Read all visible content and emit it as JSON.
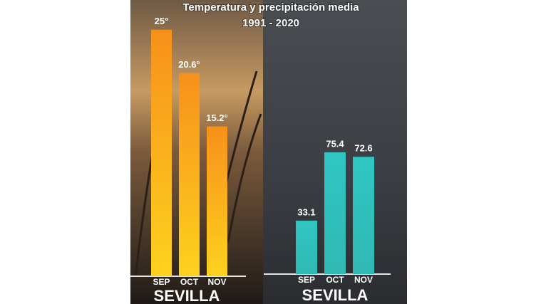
{
  "title": "Temperatura y precipitación media",
  "subtitle": "1991 - 2020",
  "chart_data": [
    {
      "type": "bar",
      "categories": [
        "SEP",
        "OCT",
        "NOV"
      ],
      "values": [
        25,
        20.6,
        15.2
      ],
      "value_labels": [
        "25°",
        "20.6°",
        "15.2°"
      ],
      "color": "#f7a21b",
      "caption": "SEVILLA"
    },
    {
      "type": "bar",
      "categories": [
        "SEP",
        "OCT",
        "NOV"
      ],
      "values": [
        33.1,
        75.4,
        72.6
      ],
      "color": "#2fc6c2",
      "caption": "SEVILLA"
    }
  ]
}
